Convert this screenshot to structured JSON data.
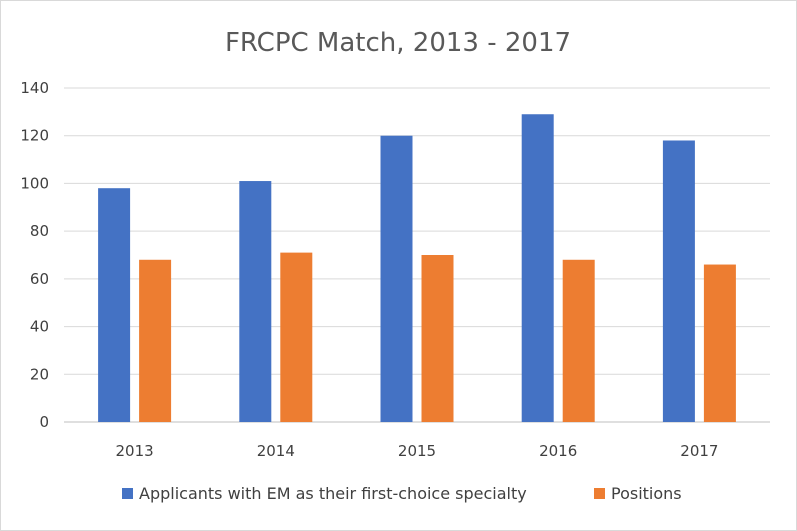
{
  "chart_data": {
    "type": "bar",
    "title": "FRCPC Match, 2013 - 2017",
    "categories": [
      "2013",
      "2014",
      "2015",
      "2016",
      "2017"
    ],
    "series": [
      {
        "name": "Applicants with EM as their first-choice specialty",
        "color": "#4472c4",
        "values": [
          98,
          101,
          120,
          129,
          118
        ]
      },
      {
        "name": "Positions",
        "color": "#ed7d31",
        "values": [
          68,
          71,
          70,
          68,
          66
        ]
      }
    ],
    "ylim": [
      0,
      140
    ],
    "yticks": [
      0,
      20,
      40,
      60,
      80,
      100,
      120,
      140
    ],
    "grid": true,
    "legend": "bottom"
  }
}
